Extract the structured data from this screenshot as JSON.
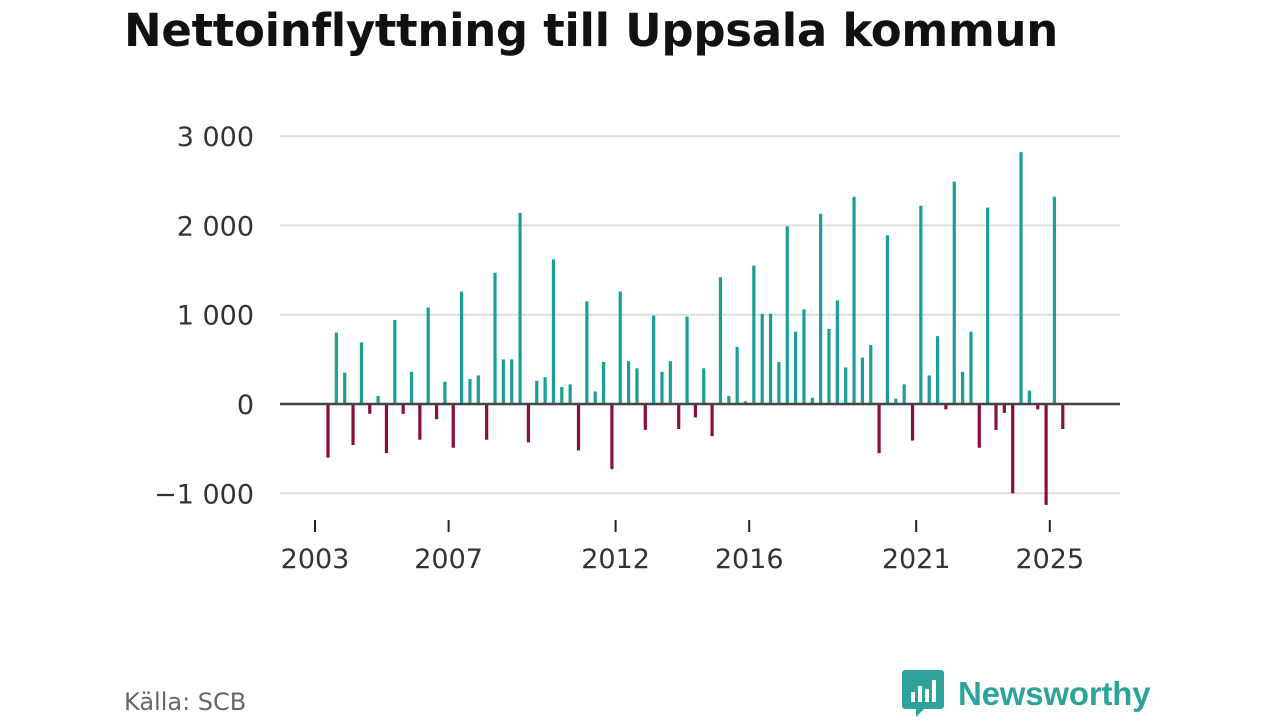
{
  "header": {
    "title": "Nettoinflyttning till Uppsala kommun"
  },
  "footer": {
    "source": "Källa: SCB",
    "brand": "Newsworthy"
  },
  "colors": {
    "positive": "#1a9e96",
    "negative": "#8a0f3f",
    "grid": "#dddddd",
    "zero_line": "#444444",
    "brand": "#2ea39b"
  },
  "chart_data": {
    "type": "bar",
    "title": "Nettoinflyttning till Uppsala kommun",
    "xlabel": "",
    "ylabel": "",
    "ylim": [
      -1150,
      3000
    ],
    "yticks": [
      -1000,
      0,
      1000,
      2000,
      3000
    ],
    "ytick_labels": [
      "−1 000",
      "0",
      "1 000",
      "2 000",
      "3 000"
    ],
    "xticks": [
      {
        "label": "2003",
        "index": 0
      },
      {
        "label": "2007",
        "index": 16
      },
      {
        "label": "2012",
        "index": 36
      },
      {
        "label": "2016",
        "index": 52
      },
      {
        "label": "2021",
        "index": 72
      },
      {
        "label": "2025",
        "index": 88
      }
    ],
    "period": "quarterly, 2003 Q1 – 2026 Q1",
    "values": [
      -600,
      800,
      350,
      -460,
      690,
      -110,
      90,
      -550,
      940,
      -110,
      360,
      -400,
      1080,
      -170,
      250,
      -490,
      1260,
      280,
      320,
      -400,
      1470,
      500,
      500,
      2140,
      -430,
      260,
      300,
      1620,
      190,
      220,
      -520,
      1150,
      140,
      470,
      -730,
      1260,
      480,
      400,
      -290,
      990,
      360,
      480,
      -280,
      980,
      -150,
      400,
      -360,
      1420,
      90,
      640,
      30,
      1550,
      1010,
      1010,
      470,
      1990,
      810,
      1060,
      70,
      2130,
      840,
      1160,
      410,
      2320,
      520,
      660,
      -550,
      1890,
      60,
      220,
      -410,
      2220,
      320,
      760,
      -60,
      2490,
      360,
      810,
      -490,
      2200,
      -290,
      -100,
      -1000,
      2820,
      150,
      -60,
      -1130,
      2320,
      -280
    ]
  }
}
